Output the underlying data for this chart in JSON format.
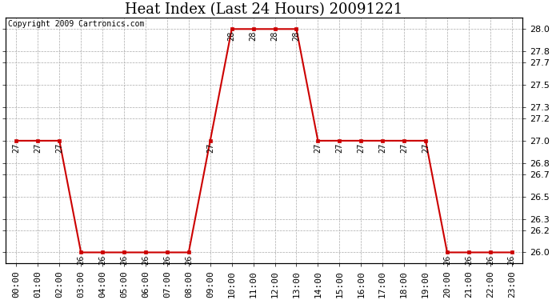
{
  "title": "Heat Index (Last 24 Hours) 20091221",
  "copyright": "Copyright 2009 Cartronics.com",
  "hours": [
    "00:00",
    "01:00",
    "02:00",
    "03:00",
    "04:00",
    "05:00",
    "06:00",
    "07:00",
    "08:00",
    "09:00",
    "10:00",
    "11:00",
    "12:00",
    "13:00",
    "14:00",
    "15:00",
    "16:00",
    "17:00",
    "18:00",
    "19:00",
    "20:00",
    "21:00",
    "22:00",
    "23:00"
  ],
  "values": [
    27,
    27,
    27,
    26,
    26,
    26,
    26,
    26,
    26,
    27,
    28,
    28,
    28,
    28,
    27,
    27,
    27,
    27,
    27,
    27,
    26,
    26,
    26,
    26
  ],
  "ylim_min": 25.9,
  "ylim_max": 28.1,
  "yticks": [
    26.0,
    26.2,
    26.3,
    26.5,
    26.7,
    26.8,
    27.0,
    27.2,
    27.3,
    27.5,
    27.7,
    27.8,
    28.0
  ],
  "line_color": "#cc0000",
  "marker_color": "#cc0000",
  "bg_color": "#ffffff",
  "grid_color": "#aaaaaa",
  "title_fontsize": 13,
  "label_fontsize": 8,
  "annot_fontsize": 7,
  "copyright_fontsize": 7
}
